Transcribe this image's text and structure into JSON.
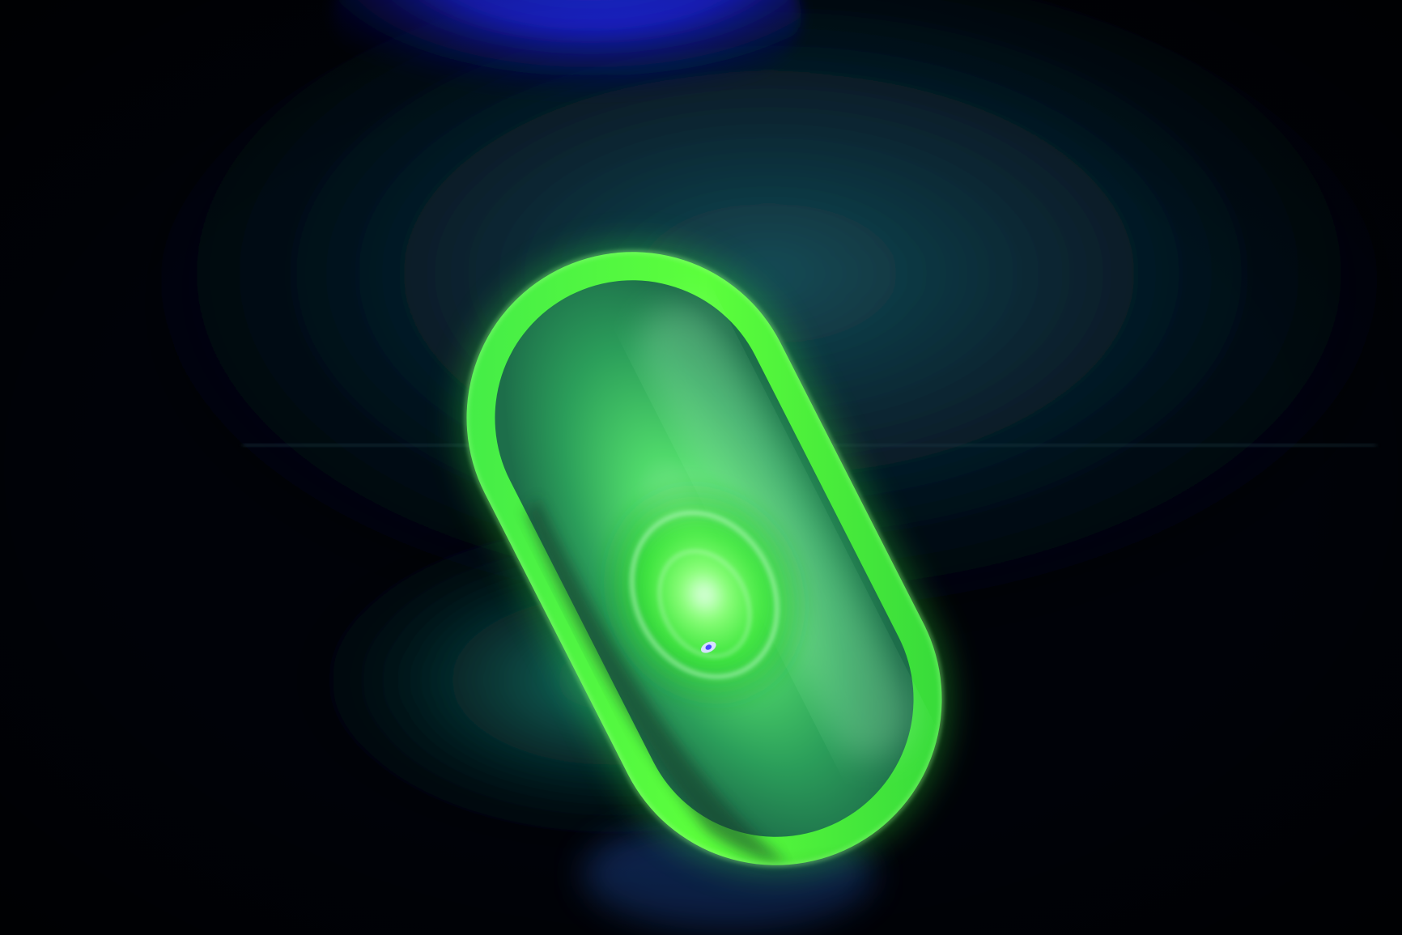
{
  "colors": {
    "background": "#000208",
    "wall": "#0b2a3a",
    "uv_lamp": "#1a2cff",
    "glass_glow": "#39ff3a",
    "glass_core": "#7dff8a",
    "reflection": "#0f6b5a"
  }
}
